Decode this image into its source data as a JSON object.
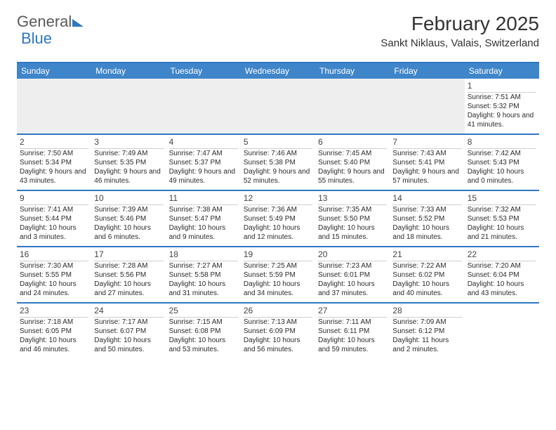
{
  "logo": {
    "word1": "General",
    "word2": "Blue"
  },
  "title": "February 2025",
  "location": "Sankt Niklaus, Valais, Switzerland",
  "day_headers": [
    "Sunday",
    "Monday",
    "Tuesday",
    "Wednesday",
    "Thursday",
    "Friday",
    "Saturday"
  ],
  "colors": {
    "header_bg": "#3f85c9",
    "border": "#2f78c3",
    "empty_week_bg": "#eeeeee"
  },
  "weeks": [
    [
      {
        "day": "",
        "sunrise": "",
        "sunset": "",
        "daylight": ""
      },
      {
        "day": "",
        "sunrise": "",
        "sunset": "",
        "daylight": ""
      },
      {
        "day": "",
        "sunrise": "",
        "sunset": "",
        "daylight": ""
      },
      {
        "day": "",
        "sunrise": "",
        "sunset": "",
        "daylight": ""
      },
      {
        "day": "",
        "sunrise": "",
        "sunset": "",
        "daylight": ""
      },
      {
        "day": "",
        "sunrise": "",
        "sunset": "",
        "daylight": ""
      },
      {
        "day": "1",
        "sunrise": "Sunrise: 7:51 AM",
        "sunset": "Sunset: 5:32 PM",
        "daylight": "Daylight: 9 hours and 41 minutes."
      }
    ],
    [
      {
        "day": "2",
        "sunrise": "Sunrise: 7:50 AM",
        "sunset": "Sunset: 5:34 PM",
        "daylight": "Daylight: 9 hours and 43 minutes."
      },
      {
        "day": "3",
        "sunrise": "Sunrise: 7:49 AM",
        "sunset": "Sunset: 5:35 PM",
        "daylight": "Daylight: 9 hours and 46 minutes."
      },
      {
        "day": "4",
        "sunrise": "Sunrise: 7:47 AM",
        "sunset": "Sunset: 5:37 PM",
        "daylight": "Daylight: 9 hours and 49 minutes."
      },
      {
        "day": "5",
        "sunrise": "Sunrise: 7:46 AM",
        "sunset": "Sunset: 5:38 PM",
        "daylight": "Daylight: 9 hours and 52 minutes."
      },
      {
        "day": "6",
        "sunrise": "Sunrise: 7:45 AM",
        "sunset": "Sunset: 5:40 PM",
        "daylight": "Daylight: 9 hours and 55 minutes."
      },
      {
        "day": "7",
        "sunrise": "Sunrise: 7:43 AM",
        "sunset": "Sunset: 5:41 PM",
        "daylight": "Daylight: 9 hours and 57 minutes."
      },
      {
        "day": "8",
        "sunrise": "Sunrise: 7:42 AM",
        "sunset": "Sunset: 5:43 PM",
        "daylight": "Daylight: 10 hours and 0 minutes."
      }
    ],
    [
      {
        "day": "9",
        "sunrise": "Sunrise: 7:41 AM",
        "sunset": "Sunset: 5:44 PM",
        "daylight": "Daylight: 10 hours and 3 minutes."
      },
      {
        "day": "10",
        "sunrise": "Sunrise: 7:39 AM",
        "sunset": "Sunset: 5:46 PM",
        "daylight": "Daylight: 10 hours and 6 minutes."
      },
      {
        "day": "11",
        "sunrise": "Sunrise: 7:38 AM",
        "sunset": "Sunset: 5:47 PM",
        "daylight": "Daylight: 10 hours and 9 minutes."
      },
      {
        "day": "12",
        "sunrise": "Sunrise: 7:36 AM",
        "sunset": "Sunset: 5:49 PM",
        "daylight": "Daylight: 10 hours and 12 minutes."
      },
      {
        "day": "13",
        "sunrise": "Sunrise: 7:35 AM",
        "sunset": "Sunset: 5:50 PM",
        "daylight": "Daylight: 10 hours and 15 minutes."
      },
      {
        "day": "14",
        "sunrise": "Sunrise: 7:33 AM",
        "sunset": "Sunset: 5:52 PM",
        "daylight": "Daylight: 10 hours and 18 minutes."
      },
      {
        "day": "15",
        "sunrise": "Sunrise: 7:32 AM",
        "sunset": "Sunset: 5:53 PM",
        "daylight": "Daylight: 10 hours and 21 minutes."
      }
    ],
    [
      {
        "day": "16",
        "sunrise": "Sunrise: 7:30 AM",
        "sunset": "Sunset: 5:55 PM",
        "daylight": "Daylight: 10 hours and 24 minutes."
      },
      {
        "day": "17",
        "sunrise": "Sunrise: 7:28 AM",
        "sunset": "Sunset: 5:56 PM",
        "daylight": "Daylight: 10 hours and 27 minutes."
      },
      {
        "day": "18",
        "sunrise": "Sunrise: 7:27 AM",
        "sunset": "Sunset: 5:58 PM",
        "daylight": "Daylight: 10 hours and 31 minutes."
      },
      {
        "day": "19",
        "sunrise": "Sunrise: 7:25 AM",
        "sunset": "Sunset: 5:59 PM",
        "daylight": "Daylight: 10 hours and 34 minutes."
      },
      {
        "day": "20",
        "sunrise": "Sunrise: 7:23 AM",
        "sunset": "Sunset: 6:01 PM",
        "daylight": "Daylight: 10 hours and 37 minutes."
      },
      {
        "day": "21",
        "sunrise": "Sunrise: 7:22 AM",
        "sunset": "Sunset: 6:02 PM",
        "daylight": "Daylight: 10 hours and 40 minutes."
      },
      {
        "day": "22",
        "sunrise": "Sunrise: 7:20 AM",
        "sunset": "Sunset: 6:04 PM",
        "daylight": "Daylight: 10 hours and 43 minutes."
      }
    ],
    [
      {
        "day": "23",
        "sunrise": "Sunrise: 7:18 AM",
        "sunset": "Sunset: 6:05 PM",
        "daylight": "Daylight: 10 hours and 46 minutes."
      },
      {
        "day": "24",
        "sunrise": "Sunrise: 7:17 AM",
        "sunset": "Sunset: 6:07 PM",
        "daylight": "Daylight: 10 hours and 50 minutes."
      },
      {
        "day": "25",
        "sunrise": "Sunrise: 7:15 AM",
        "sunset": "Sunset: 6:08 PM",
        "daylight": "Daylight: 10 hours and 53 minutes."
      },
      {
        "day": "26",
        "sunrise": "Sunrise: 7:13 AM",
        "sunset": "Sunset: 6:09 PM",
        "daylight": "Daylight: 10 hours and 56 minutes."
      },
      {
        "day": "27",
        "sunrise": "Sunrise: 7:11 AM",
        "sunset": "Sunset: 6:11 PM",
        "daylight": "Daylight: 10 hours and 59 minutes."
      },
      {
        "day": "28",
        "sunrise": "Sunrise: 7:09 AM",
        "sunset": "Sunset: 6:12 PM",
        "daylight": "Daylight: 11 hours and 2 minutes."
      },
      {
        "day": "",
        "sunrise": "",
        "sunset": "",
        "daylight": ""
      }
    ]
  ]
}
